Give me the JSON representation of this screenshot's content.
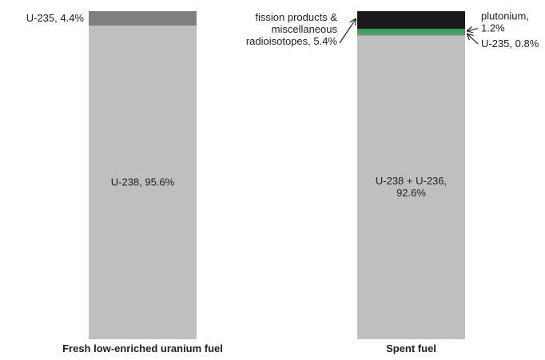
{
  "chart_data": {
    "type": "bar",
    "stacked": true,
    "ylim": [
      0,
      100
    ],
    "grid": false,
    "legend": "none",
    "categories": [
      "Fresh low-enriched uranium fuel",
      "Spent fuel"
    ],
    "bars": [
      {
        "category": "Fresh low-enriched uranium fuel",
        "segments": [
          {
            "label": "U-238, 95.6%",
            "value": 95.6,
            "color": "#bfbfbf",
            "label_lines": [
              "U-238, 95.6%"
            ],
            "label_mode": "inside"
          },
          {
            "label": "U-235, 4.4%",
            "value": 4.4,
            "color": "#7f7f7f",
            "label_lines": [
              "U-235, 4.4%"
            ],
            "label_mode": "left"
          }
        ]
      },
      {
        "category": "Spent fuel",
        "segments": [
          {
            "label": "U-238 + U-236, 92.6%",
            "value": 92.6,
            "color": "#bfbfbf",
            "label_lines": [
              "U-238 + U-236,",
              "92.6%"
            ],
            "label_mode": "inside"
          },
          {
            "label": "U-235, 0.8%",
            "value": 0.8,
            "color": "#7f7f7f",
            "label_lines": [
              "U-235, 0.8%"
            ],
            "label_mode": "right-arrow"
          },
          {
            "label": "plutonium, 1.2%",
            "value": 1.2,
            "color": "#1fae4b",
            "label_lines": [
              "plutonium,",
              "1.2%"
            ],
            "label_mode": "right-arrow"
          },
          {
            "label": "fission products & miscellaneous radioisotopes, 5.4%",
            "value": 5.4,
            "color": "#1a1a1a",
            "label_lines": [
              "fission products &",
              "miscellaneous",
              "radioisotopes, 5.4%"
            ],
            "label_mode": "left-arrow"
          }
        ]
      }
    ]
  }
}
